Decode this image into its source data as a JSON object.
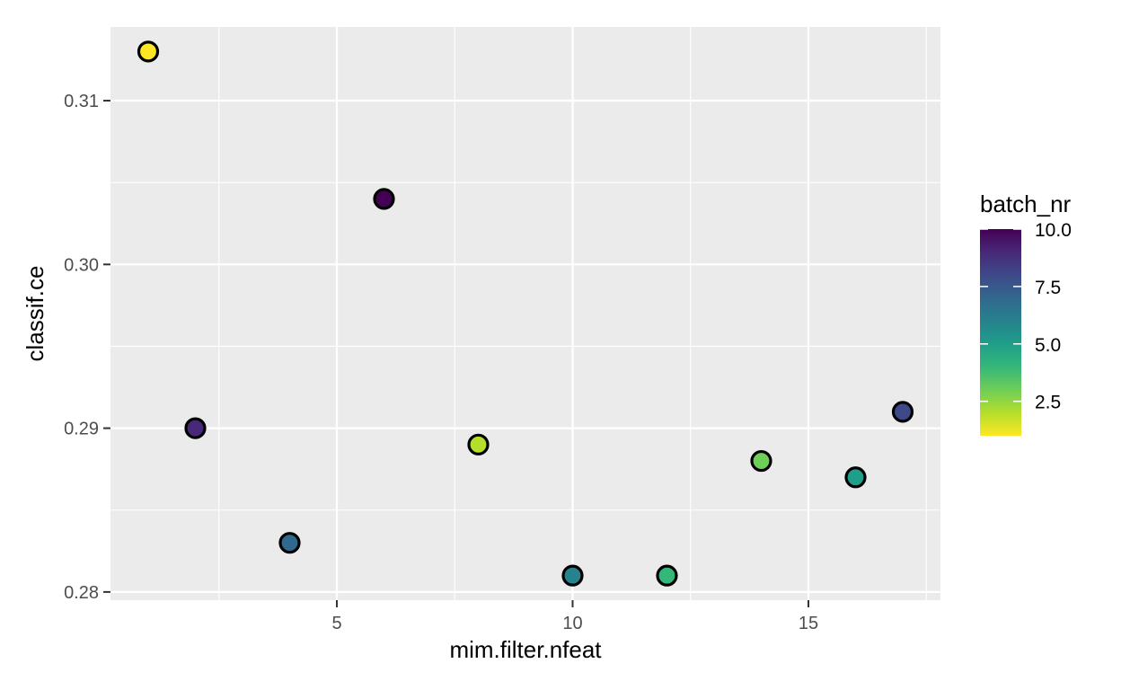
{
  "chart_data": {
    "type": "scatter",
    "xlabel": "mim.filter.nfeat",
    "ylabel": "classif.ce",
    "xlim": [
      0.2,
      17.8
    ],
    "ylim": [
      0.2795,
      0.3145
    ],
    "x_ticks": [
      5,
      10,
      15
    ],
    "x_tick_labels": [
      "5",
      "10",
      "15"
    ],
    "y_ticks": [
      0.28,
      0.29,
      0.3,
      0.31
    ],
    "y_tick_labels": [
      "0.28",
      "0.29",
      "0.30",
      "0.31"
    ],
    "grid": true,
    "legend": {
      "title": "batch_nr",
      "placement": "right",
      "min": 1,
      "max": 10,
      "ticks": [
        2.5,
        5.0,
        7.5,
        10.0
      ],
      "tick_labels": [
        "2.5",
        "5.0",
        "7.5",
        "10.0"
      ]
    },
    "colors": {
      "panel_bg": "#ebebeb",
      "grid_major": "#ffffff",
      "point_outline": "#000000",
      "viridis": [
        "#fde725",
        "#b5de2b",
        "#6ece58",
        "#35b779",
        "#1f9e89",
        "#26828e",
        "#31688e",
        "#3e4989",
        "#482878",
        "#440154"
      ]
    },
    "points": [
      {
        "x": 1,
        "y": 0.313,
        "batch_nr": 1
      },
      {
        "x": 2,
        "y": 0.29,
        "batch_nr": 9
      },
      {
        "x": 4,
        "y": 0.283,
        "batch_nr": 7
      },
      {
        "x": 6,
        "y": 0.304,
        "batch_nr": 10
      },
      {
        "x": 8,
        "y": 0.289,
        "batch_nr": 2
      },
      {
        "x": 10,
        "y": 0.281,
        "batch_nr": 6
      },
      {
        "x": 12,
        "y": 0.281,
        "batch_nr": 4
      },
      {
        "x": 14,
        "y": 0.288,
        "batch_nr": 3
      },
      {
        "x": 16,
        "y": 0.287,
        "batch_nr": 5
      },
      {
        "x": 17,
        "y": 0.291,
        "batch_nr": 8
      }
    ]
  }
}
